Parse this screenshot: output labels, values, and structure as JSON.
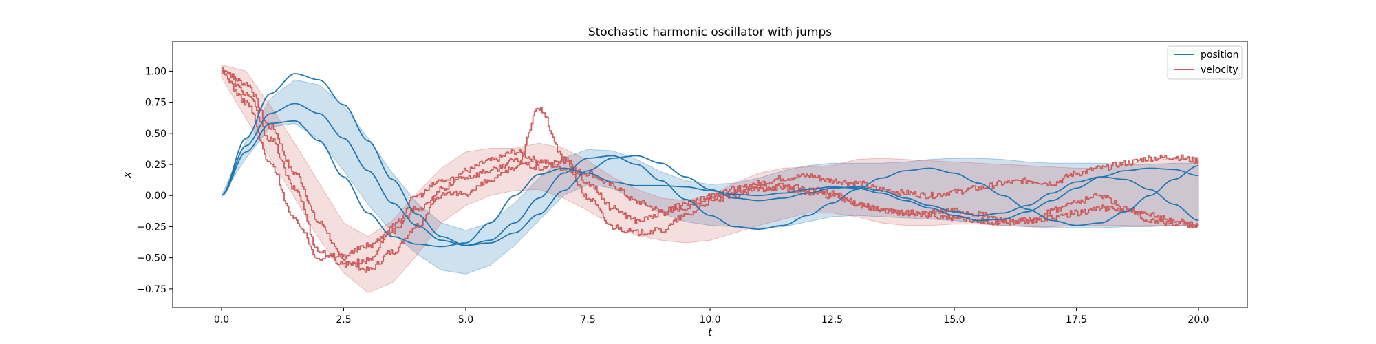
{
  "chart_data": {
    "type": "line",
    "title": "Stochastic harmonic oscillator with jumps",
    "xlabel": "t",
    "ylabel": "x",
    "xlim": [
      -1.0,
      21.0
    ],
    "ylim": [
      -0.9,
      1.24
    ],
    "xticks": [
      0.0,
      2.5,
      5.0,
      7.5,
      10.0,
      12.5,
      15.0,
      17.5,
      20.0
    ],
    "xtick_labels": [
      "0.0",
      "2.5",
      "5.0",
      "7.5",
      "10.0",
      "12.5",
      "15.0",
      "17.5",
      "20.0"
    ],
    "yticks": [
      -0.75,
      -0.5,
      -0.25,
      0.0,
      0.25,
      0.5,
      0.75,
      1.0
    ],
    "ytick_labels": [
      "−0.75",
      "−0.50",
      "−0.25",
      "0.00",
      "0.25",
      "0.50",
      "0.75",
      "1.00"
    ],
    "grid": false,
    "legend_placement": "top-right",
    "legend": [
      {
        "label": "position",
        "color": "#1f77b4"
      },
      {
        "label": "velocity",
        "color": "#cd5c5c"
      }
    ],
    "position_color": "#1f77b4",
    "velocity_color": "#cd5c5c",
    "t": [
      0,
      0.5,
      1,
      1.5,
      2,
      2.5,
      3,
      3.5,
      4,
      4.5,
      5,
      5.5,
      6,
      6.5,
      7,
      7.5,
      8,
      8.5,
      9,
      9.5,
      10,
      10.5,
      11,
      11.5,
      12,
      12.5,
      13,
      13.5,
      14,
      14.5,
      15,
      15.5,
      16,
      16.5,
      17,
      17.5,
      18,
      18.5,
      19,
      19.5,
      20
    ],
    "bands": [
      {
        "name": "position",
        "upper": [
          0.0,
          0.44,
          0.78,
          0.93,
          0.89,
          0.72,
          0.46,
          0.18,
          -0.06,
          -0.22,
          -0.28,
          -0.22,
          -0.06,
          0.14,
          0.3,
          0.37,
          0.36,
          0.29,
          0.19,
          0.12,
          0.09,
          0.1,
          0.14,
          0.2,
          0.24,
          0.26,
          0.26,
          0.26,
          0.27,
          0.29,
          0.3,
          0.3,
          0.29,
          0.27,
          0.26,
          0.26,
          0.26,
          0.25,
          0.25,
          0.26,
          0.26
        ],
        "lower": [
          0.0,
          0.3,
          0.55,
          0.58,
          0.45,
          0.2,
          -0.07,
          -0.3,
          -0.47,
          -0.6,
          -0.63,
          -0.56,
          -0.4,
          -0.2,
          0.0,
          0.09,
          0.06,
          -0.04,
          -0.14,
          -0.21,
          -0.24,
          -0.25,
          -0.26,
          -0.25,
          -0.21,
          -0.17,
          -0.16,
          -0.17,
          -0.18,
          -0.19,
          -0.2,
          -0.22,
          -0.24,
          -0.25,
          -0.26,
          -0.26,
          -0.26,
          -0.25,
          -0.25,
          -0.24,
          -0.24
        ]
      },
      {
        "name": "velocity",
        "upper": [
          1.05,
          1.0,
          0.72,
          0.42,
          0.1,
          -0.22,
          -0.33,
          -0.2,
          0.02,
          0.22,
          0.35,
          0.38,
          0.38,
          0.42,
          0.38,
          0.28,
          0.15,
          0.05,
          -0.02,
          -0.04,
          0.0,
          0.1,
          0.18,
          0.22,
          0.23,
          0.24,
          0.29,
          0.3,
          0.29,
          0.28,
          0.27,
          0.26,
          0.25,
          0.24,
          0.23,
          0.22,
          0.22,
          0.25,
          0.28,
          0.3,
          0.31
        ],
        "lower": [
          0.95,
          0.62,
          0.3,
          -0.02,
          -0.35,
          -0.62,
          -0.78,
          -0.7,
          -0.48,
          -0.22,
          -0.08,
          0.0,
          0.04,
          0.05,
          -0.02,
          -0.12,
          -0.24,
          -0.32,
          -0.36,
          -0.38,
          -0.36,
          -0.3,
          -0.24,
          -0.19,
          -0.14,
          -0.14,
          -0.17,
          -0.22,
          -0.24,
          -0.24,
          -0.23,
          -0.23,
          -0.24,
          -0.25,
          -0.25,
          -0.24,
          -0.24,
          -0.24,
          -0.24,
          -0.24,
          -0.24
        ]
      }
    ],
    "series": [
      {
        "name": "position",
        "legend": true,
        "values": [
          0.0,
          0.46,
          0.82,
          0.98,
          0.93,
          0.73,
          0.44,
          0.13,
          -0.15,
          -0.33,
          -0.4,
          -0.36,
          -0.22,
          -0.02,
          0.18,
          0.3,
          0.32,
          0.25,
          0.12,
          -0.03,
          -0.16,
          -0.25,
          -0.27,
          -0.24,
          -0.16,
          -0.06,
          0.05,
          0.14,
          0.2,
          0.22,
          0.18,
          0.1,
          0.0,
          -0.11,
          -0.2,
          -0.24,
          -0.22,
          -0.13,
          0.0,
          0.13,
          0.24
        ]
      },
      {
        "name": "position-run2",
        "legend": false,
        "values": [
          0.0,
          0.4,
          0.66,
          0.74,
          0.66,
          0.46,
          0.2,
          -0.06,
          -0.24,
          -0.36,
          -0.4,
          -0.38,
          -0.3,
          -0.15,
          0.04,
          0.2,
          0.3,
          0.32,
          0.26,
          0.15,
          0.05,
          -0.02,
          -0.04,
          -0.02,
          0.02,
          0.06,
          0.07,
          0.04,
          -0.02,
          -0.08,
          -0.13,
          -0.16,
          -0.14,
          -0.08,
          0.02,
          0.11,
          0.15,
          0.13,
          0.05,
          -0.07,
          -0.2
        ]
      },
      {
        "name": "position-run3",
        "legend": false,
        "values": [
          0.0,
          0.35,
          0.58,
          0.6,
          0.44,
          0.15,
          -0.14,
          -0.33,
          -0.39,
          -0.41,
          -0.38,
          -0.22,
          0.0,
          0.17,
          0.22,
          0.18,
          0.11,
          0.08,
          0.08,
          0.07,
          0.04,
          0.01,
          0.0,
          0.02,
          0.05,
          0.07,
          0.06,
          0.02,
          -0.04,
          -0.1,
          -0.16,
          -0.2,
          -0.19,
          -0.13,
          -0.04,
          0.06,
          0.15,
          0.2,
          0.22,
          0.21,
          0.16
        ]
      },
      {
        "name": "velocity",
        "legend": true,
        "jagged": true,
        "values": [
          1.0,
          0.9,
          0.55,
          0.18,
          -0.22,
          -0.52,
          -0.6,
          -0.45,
          -0.24,
          0.05,
          0.2,
          0.28,
          0.35,
          0.28,
          0.22,
          0.18,
          0.08,
          -0.05,
          -0.12,
          -0.1,
          -0.02,
          0.05,
          0.1,
          0.14,
          0.16,
          0.12,
          0.1,
          0.05,
          0.02,
          0.0,
          0.03,
          0.06,
          0.1,
          0.12,
          0.1,
          0.18,
          0.22,
          0.26,
          0.3,
          0.31,
          0.28
        ]
      },
      {
        "name": "velocity-run2",
        "legend": false,
        "jagged": true,
        "values": [
          1.02,
          0.82,
          0.45,
          0.05,
          -0.45,
          -0.55,
          -0.52,
          -0.25,
          0.0,
          0.12,
          0.15,
          0.2,
          0.28,
          0.22,
          0.28,
          -0.02,
          -0.25,
          -0.3,
          -0.28,
          -0.16,
          -0.05,
          0.0,
          0.05,
          0.08,
          0.05,
          0.02,
          -0.06,
          -0.12,
          -0.14,
          -0.14,
          -0.12,
          -0.15,
          -0.2,
          -0.22,
          -0.18,
          -0.14,
          -0.1,
          -0.12,
          -0.16,
          -0.2,
          -0.24
        ]
      },
      {
        "name": "velocity-run3",
        "legend": false,
        "jagged": true,
        "values": [
          0.98,
          0.75,
          0.25,
          -0.2,
          -0.5,
          -0.48,
          -0.4,
          -0.28,
          -0.1,
          0.0,
          0.02,
          0.12,
          0.22,
          0.7,
          0.3,
          0.1,
          -0.1,
          -0.2,
          -0.15,
          -0.06,
          0.0,
          0.04,
          0.08,
          0.06,
          0.02,
          0.0,
          -0.08,
          -0.12,
          -0.14,
          -0.16,
          -0.18,
          -0.2,
          -0.22,
          -0.2,
          -0.12,
          -0.05,
          0.0,
          -0.1,
          -0.2,
          -0.22,
          -0.24
        ]
      }
    ]
  }
}
